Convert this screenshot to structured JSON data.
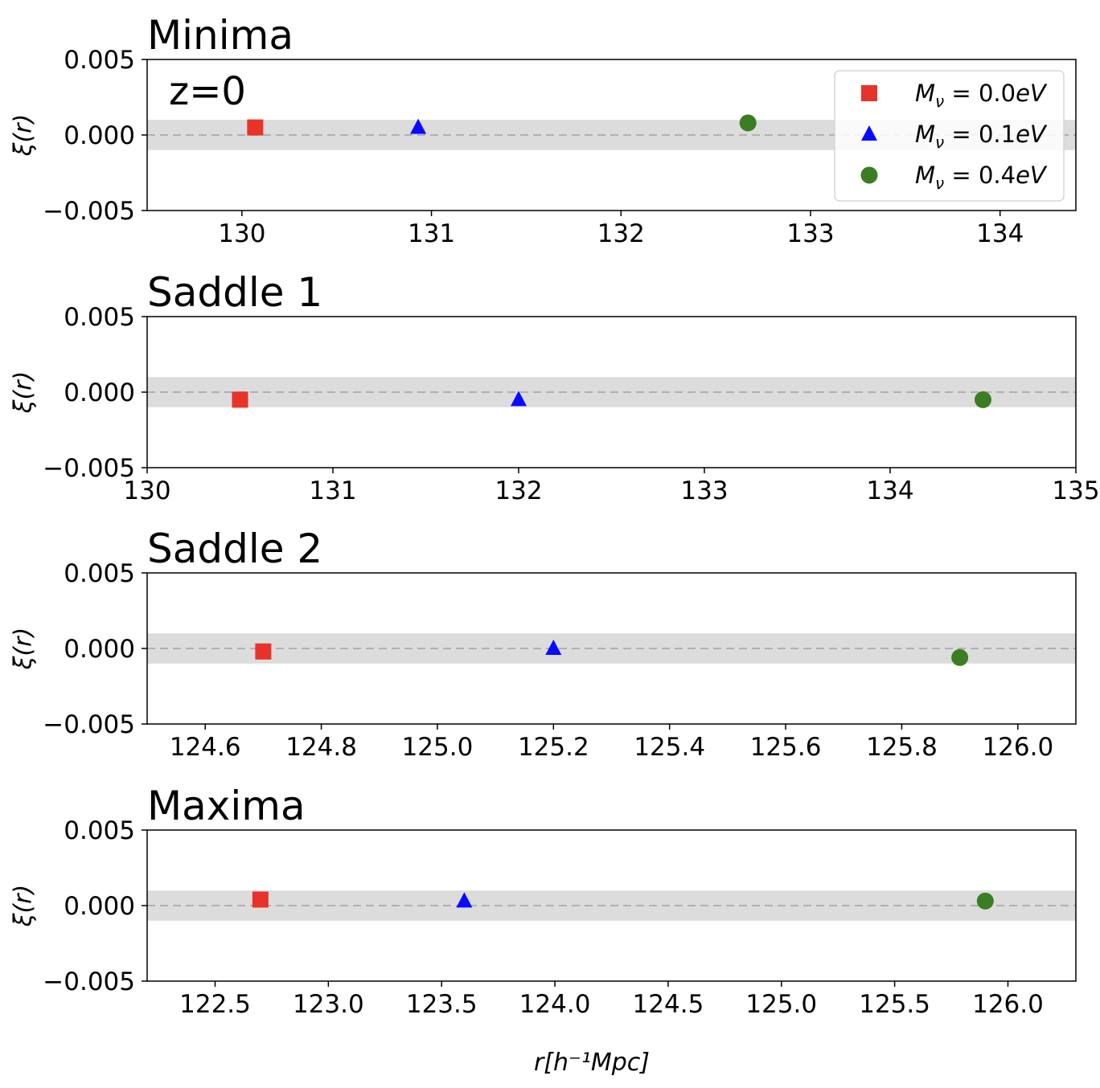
{
  "chart_data": [
    {
      "type": "scatter",
      "title": "Minima",
      "annotation": "z=0",
      "ylabel": "ξ(r)",
      "xlabel": "",
      "xlim": [
        129.5,
        134.4
      ],
      "ylim": [
        -0.005,
        0.005
      ],
      "xticks": [
        130,
        131,
        132,
        133,
        134
      ],
      "xtick_labels": [
        "130",
        "131",
        "132",
        "133",
        "134"
      ],
      "yticks": [
        0.005,
        0.0,
        -0.005
      ],
      "ytick_labels": [
        "0.005",
        "0.000",
        "−0.005"
      ],
      "band": [
        -0.001,
        0.001
      ],
      "zero_line": 0,
      "legend_placement": "top-right",
      "series": [
        {
          "name": "Mν = 0.0eV",
          "marker": "square",
          "color": "#e8332a",
          "x": [
            130.07
          ],
          "y": [
            0.0005
          ]
        },
        {
          "name": "Mν = 0.1eV",
          "marker": "triangle",
          "color": "#0a0aff",
          "x": [
            130.93
          ],
          "y": [
            0.0005
          ]
        },
        {
          "name": "Mν = 0.4eV",
          "marker": "circle",
          "color": "#3a7d22",
          "x": [
            132.67
          ],
          "y": [
            0.0008
          ]
        }
      ]
    },
    {
      "type": "scatter",
      "title": "Saddle 1",
      "ylabel": "ξ(r)",
      "xlabel": "",
      "xlim": [
        130,
        135
      ],
      "ylim": [
        -0.005,
        0.005
      ],
      "xticks": [
        130,
        131,
        132,
        133,
        134,
        135
      ],
      "xtick_labels": [
        "130",
        "131",
        "132",
        "133",
        "134",
        "135"
      ],
      "yticks": [
        0.005,
        0.0,
        -0.005
      ],
      "ytick_labels": [
        "0.005",
        "0.000",
        "−0.005"
      ],
      "band": [
        -0.001,
        0.001
      ],
      "zero_line": 0,
      "series": [
        {
          "name": "Mν = 0.0eV",
          "marker": "square",
          "color": "#e8332a",
          "x": [
            130.5
          ],
          "y": [
            -0.0005
          ]
        },
        {
          "name": "Mν = 0.1eV",
          "marker": "triangle",
          "color": "#0a0aff",
          "x": [
            132.0
          ],
          "y": [
            -0.0005
          ]
        },
        {
          "name": "Mν = 0.4eV",
          "marker": "circle",
          "color": "#3a7d22",
          "x": [
            134.5
          ],
          "y": [
            -0.0005
          ]
        }
      ]
    },
    {
      "type": "scatter",
      "title": "Saddle 2",
      "ylabel": "ξ(r)",
      "xlabel": "",
      "xlim": [
        124.5,
        126.1
      ],
      "ylim": [
        -0.005,
        0.005
      ],
      "xticks": [
        124.6,
        124.8,
        125.0,
        125.2,
        125.4,
        125.6,
        125.8,
        126.0
      ],
      "xtick_labels": [
        "124.6",
        "124.8",
        "125.0",
        "125.2",
        "125.4",
        "125.6",
        "125.8",
        "126.0"
      ],
      "yticks": [
        0.005,
        0.0,
        -0.005
      ],
      "ytick_labels": [
        "0.005",
        "0.000",
        "−0.005"
      ],
      "band": [
        -0.001,
        0.001
      ],
      "zero_line": 0,
      "series": [
        {
          "name": "Mν = 0.0eV",
          "marker": "square",
          "color": "#e8332a",
          "x": [
            124.7
          ],
          "y": [
            -0.0002
          ]
        },
        {
          "name": "Mν = 0.1eV",
          "marker": "triangle",
          "color": "#0a0aff",
          "x": [
            125.2
          ],
          "y": [
            0.0
          ]
        },
        {
          "name": "Mν = 0.4eV",
          "marker": "circle",
          "color": "#3a7d22",
          "x": [
            125.9
          ],
          "y": [
            -0.0006
          ]
        }
      ]
    },
    {
      "type": "scatter",
      "title": "Maxima",
      "ylabel": "ξ(r)",
      "xlabel": "r[h⁻¹Mpc]",
      "xlim": [
        122.2,
        126.3
      ],
      "ylim": [
        -0.005,
        0.005
      ],
      "xticks": [
        122.5,
        123.0,
        123.5,
        124.0,
        124.5,
        125.0,
        125.5,
        126.0
      ],
      "xtick_labels": [
        "122.5",
        "123.0",
        "123.5",
        "124.0",
        "124.5",
        "125.0",
        "125.5",
        "126.0"
      ],
      "yticks": [
        0.005,
        0.0,
        -0.005
      ],
      "ytick_labels": [
        "0.005",
        "0.000",
        "−0.005"
      ],
      "band": [
        -0.001,
        0.001
      ],
      "zero_line": 0,
      "series": [
        {
          "name": "Mν = 0.0eV",
          "marker": "square",
          "color": "#e8332a",
          "x": [
            122.7
          ],
          "y": [
            0.0004
          ]
        },
        {
          "name": "Mν = 0.1eV",
          "marker": "triangle",
          "color": "#0a0aff",
          "x": [
            123.6
          ],
          "y": [
            0.0003
          ]
        },
        {
          "name": "Mν = 0.4eV",
          "marker": "circle",
          "color": "#3a7d22",
          "x": [
            125.9
          ],
          "y": [
            0.0003
          ]
        }
      ]
    }
  ],
  "legend": {
    "entries": [
      {
        "symbol": "M",
        "sub": "ν",
        "rest": " = 0.0",
        "unit": "eV",
        "marker": "square",
        "color": "#e8332a"
      },
      {
        "symbol": "M",
        "sub": "ν",
        "rest": " = 0.1",
        "unit": "eV",
        "marker": "triangle",
        "color": "#0a0aff"
      },
      {
        "symbol": "M",
        "sub": "ν",
        "rest": " = 0.4",
        "unit": "eV",
        "marker": "circle",
        "color": "#3a7d22"
      }
    ]
  },
  "colors": {
    "band": "#dcdcdc",
    "zero_line": "#b0b0b0",
    "axes": "#000000"
  }
}
